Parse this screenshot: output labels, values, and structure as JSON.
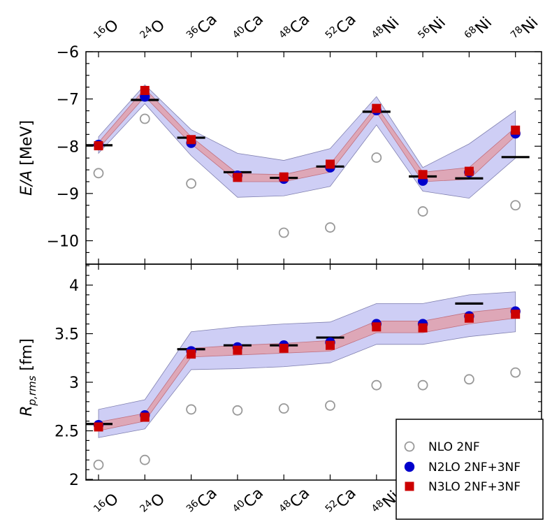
{
  "chart_data": [
    {
      "type": "line",
      "panel": "top",
      "ylabel_main": "E/A",
      "ylabel_unit": "[MeV]",
      "ylim": [
        -10.5,
        -6
      ],
      "yticks": [
        -6,
        -7,
        -8,
        -9,
        -10
      ],
      "ytick_labels": [
        "−6",
        "−7",
        "−8",
        "−9",
        "−10"
      ],
      "categories": [
        {
          "mass": "16",
          "element": "O"
        },
        {
          "mass": "24",
          "element": "O"
        },
        {
          "mass": "36",
          "element": "Ca"
        },
        {
          "mass": "40",
          "element": "Ca"
        },
        {
          "mass": "48",
          "element": "Ca"
        },
        {
          "mass": "52",
          "element": "Ca"
        },
        {
          "mass": "48",
          "element": "Ni"
        },
        {
          "mass": "56",
          "element": "Ni"
        },
        {
          "mass": "68",
          "element": "Ni"
        },
        {
          "mass": "78",
          "element": "Ni"
        }
      ],
      "experiment": [
        -7.98,
        -7.02,
        -7.82,
        -8.55,
        -8.67,
        -8.43,
        -7.27,
        -8.64,
        -8.68,
        -8.23
      ],
      "band_n2lo_lower": [
        -8.15,
        -7.1,
        -8.2,
        -9.08,
        -9.05,
        -8.85,
        -7.55,
        -8.95,
        -9.1,
        -8.25
      ],
      "band_n2lo_upper": [
        -7.8,
        -6.7,
        -7.65,
        -8.15,
        -8.3,
        -8.05,
        -6.95,
        -8.45,
        -7.95,
        -7.25
      ],
      "band_n3lo_lower": [
        -8.05,
        -6.95,
        -7.95,
        -8.75,
        -8.75,
        -8.55,
        -7.28,
        -8.75,
        -8.7,
        -7.78
      ],
      "band_n3lo_upper": [
        -7.92,
        -6.78,
        -7.8,
        -8.58,
        -8.6,
        -8.38,
        -7.15,
        -8.55,
        -8.45,
        -7.6
      ],
      "series": [
        {
          "name": "NLO  2NF",
          "values": [
            -8.57,
            -7.42,
            -8.79,
            null,
            -9.83,
            -9.72,
            -8.24,
            -9.38,
            null,
            -9.25
          ]
        },
        {
          "name": "N2LO 2NF+3NF",
          "values": [
            -7.97,
            -6.95,
            -7.93,
            -8.62,
            -8.69,
            -8.45,
            -7.24,
            -8.73,
            -8.55,
            -7.73
          ]
        },
        {
          "name": "N3LO 2NF+3NF",
          "values": [
            -7.99,
            -6.82,
            -7.86,
            -8.66,
            -8.65,
            -8.38,
            -7.2,
            -8.6,
            -8.53,
            -7.66
          ]
        }
      ]
    },
    {
      "type": "line",
      "panel": "bottom",
      "ylabel_main": "R",
      "ylabel_sub": "p,rms",
      "ylabel_unit": "[fm]",
      "ylim": [
        2,
        4.2
      ],
      "yticks": [
        2,
        2.5,
        3,
        3.5,
        4
      ],
      "ytick_labels": [
        "2",
        "2.5",
        "3",
        "3.5",
        "4"
      ],
      "experiment": [
        2.57,
        null,
        3.34,
        3.38,
        3.38,
        3.46,
        null,
        null,
        3.81,
        null
      ],
      "band_n2lo_lower": [
        2.43,
        2.52,
        3.13,
        3.14,
        3.16,
        3.2,
        3.39,
        3.39,
        3.47,
        3.52
      ],
      "band_n2lo_upper": [
        2.72,
        2.82,
        3.52,
        3.57,
        3.6,
        3.62,
        3.81,
        3.81,
        3.9,
        3.93
      ],
      "band_n3lo_lower": [
        2.5,
        2.6,
        3.26,
        3.28,
        3.3,
        3.32,
        3.51,
        3.51,
        3.6,
        3.66
      ],
      "band_n3lo_upper": [
        2.59,
        2.68,
        3.35,
        3.38,
        3.4,
        3.43,
        3.63,
        3.63,
        3.72,
        3.77
      ],
      "series": [
        {
          "name": "NLO  2NF",
          "values": [
            2.15,
            2.2,
            2.72,
            2.71,
            2.73,
            2.76,
            2.97,
            2.97,
            3.03,
            3.1
          ]
        },
        {
          "name": "N2LO 2NF+3NF",
          "values": [
            2.56,
            2.66,
            3.32,
            3.36,
            3.38,
            3.41,
            3.6,
            3.6,
            3.68,
            3.73
          ]
        },
        {
          "name": "N3LO 2NF+3NF",
          "values": [
            2.54,
            2.64,
            3.29,
            3.33,
            3.35,
            3.38,
            3.57,
            3.56,
            3.66,
            3.7
          ]
        }
      ]
    }
  ],
  "legend": {
    "items": [
      {
        "label": "NLO  2NF",
        "marker": "open-circle"
      },
      {
        "label": "N2LO 2NF+3NF",
        "marker": "filled-circle"
      },
      {
        "label": "N3LO 2NF+3NF",
        "marker": "filled-square"
      }
    ]
  },
  "colors": {
    "n2lo_band": "#c9c9f4",
    "n3lo_band": "#e0a3b0",
    "n2lo_marker": "#0000cc",
    "n3lo_marker": "#cc0000",
    "nlo_marker": "#999999",
    "experiment": "#000000"
  }
}
